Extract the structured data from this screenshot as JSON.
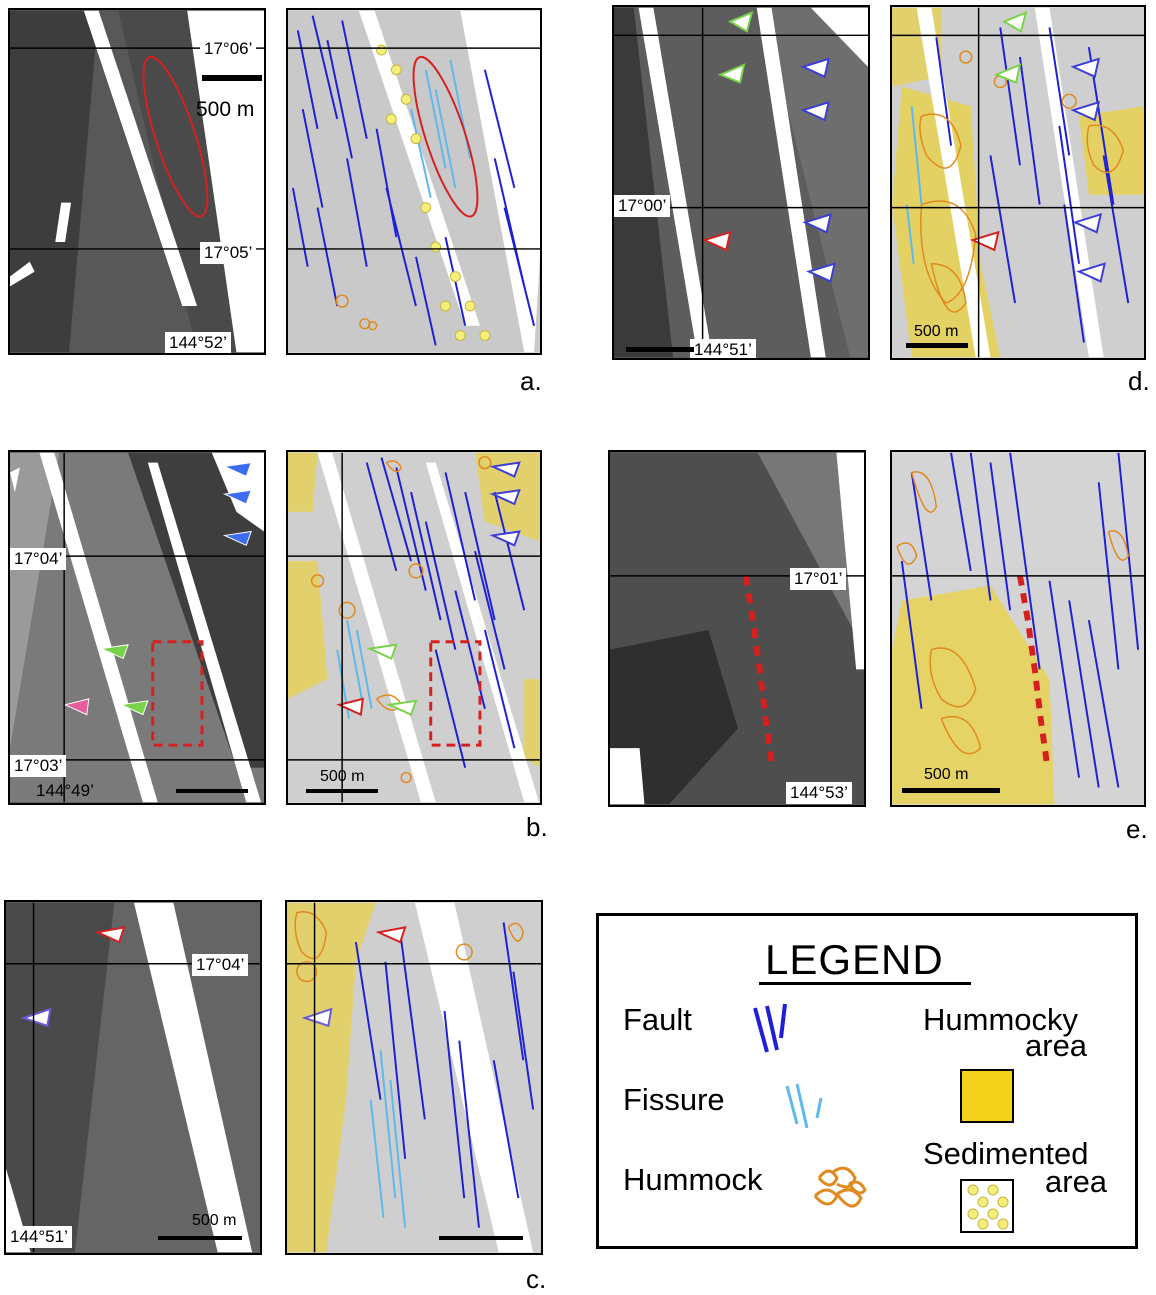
{
  "panels": {
    "a": {
      "letter": "a.",
      "lat_top": "17°06’",
      "lat_bottom": "17°05’",
      "lon": "144°52’",
      "scale_label": "500 m"
    },
    "b": {
      "letter": "b.",
      "lat_top": "17°04’",
      "lat_bottom": "17°03’",
      "lon": "144°49’",
      "scale_label": "500 m"
    },
    "c": {
      "letter": "c.",
      "lat": "17°04’",
      "lon": "144°51’",
      "scale_label": "500 m"
    },
    "d": {
      "letter": "d.",
      "lat": "17°00’",
      "lon": "144°51’",
      "scale_label": "500 m"
    },
    "e": {
      "letter": "e.",
      "lat": "17°01’",
      "lon": "144°53’",
      "scale_label": "500 m"
    }
  },
  "legend": {
    "title": "LEGEND",
    "items": {
      "fault": {
        "label": "Fault",
        "color": "#1f1fd6"
      },
      "fissure": {
        "label": "Fissure",
        "color": "#5fb8ee"
      },
      "hummock": {
        "label": "Hummock",
        "color": "#e08a1e"
      },
      "hummocky_line1": "Hummocky",
      "hummocky_line2": "area",
      "hummocky_color": "#f2d21b",
      "sedimented_line1": "Sedimented",
      "sedimented_line2": "area",
      "sedimented_color": "#f4ef7a"
    }
  }
}
